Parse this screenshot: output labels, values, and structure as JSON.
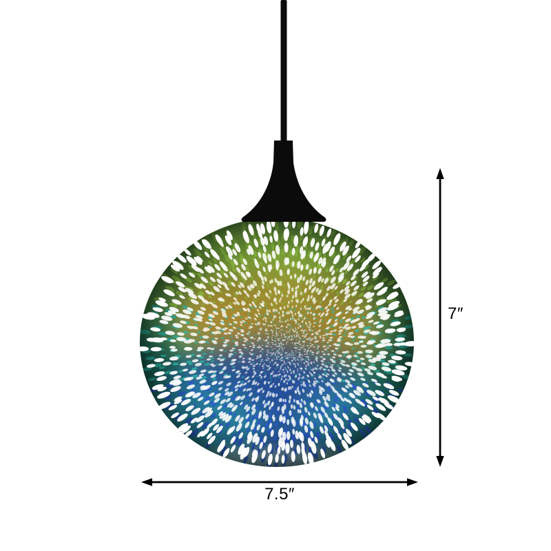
{
  "product": {
    "name": "3D fireworks glass globe pendant light",
    "colors": {
      "fixture": "#0b0b0b",
      "base_center": "#274539",
      "base_mid": "#1a382d",
      "base_edge": "#0d2820",
      "green": "#8ab63c",
      "orange": "#d8902c",
      "blue": "#2d55d6",
      "teal": "#2fb7a8",
      "rim": "#d8e9df",
      "dot": "#ffffff"
    }
  },
  "annotations": {
    "line_color": "#000000",
    "height_label": "7″",
    "width_label": "7.5″"
  }
}
